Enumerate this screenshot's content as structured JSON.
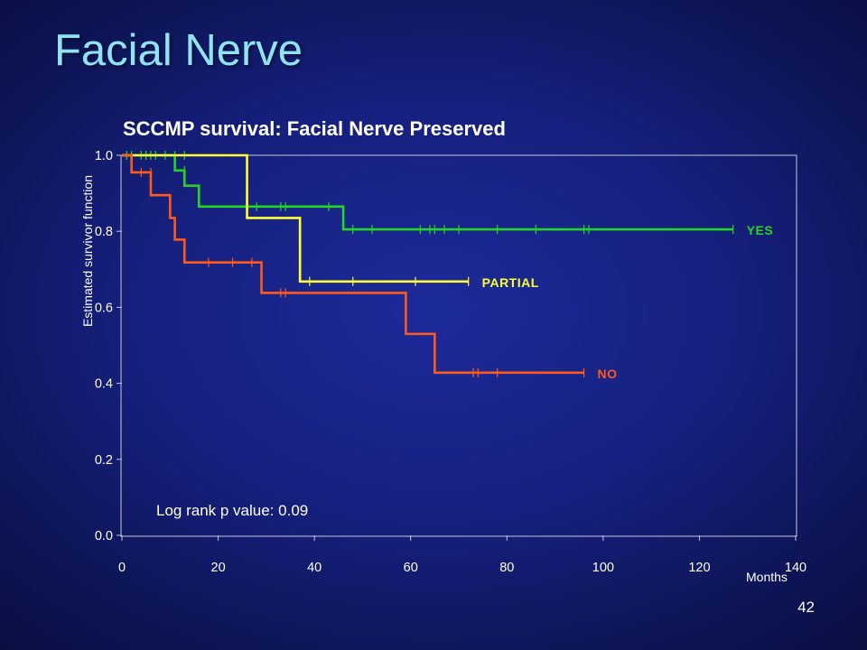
{
  "slide": {
    "title": "Facial Nerve",
    "number": "42"
  },
  "chart_data": {
    "type": "line",
    "subtype": "kaplan-meier step",
    "title": "SCCMP survival: Facial Nerve Preserved",
    "xlabel": "Months",
    "ylabel": "Estimated survivor function",
    "xlim": [
      0,
      140
    ],
    "ylim": [
      0,
      1
    ],
    "xticks": [
      0,
      20,
      40,
      60,
      80,
      100,
      120,
      140
    ],
    "yticks": [
      "0.0",
      "0.2",
      "0.4",
      "0.6",
      "0.8",
      "1.0"
    ],
    "grid": false,
    "annotation": "Log rank p value: 0.09",
    "series": [
      {
        "name": "YES",
        "color": "#22d622",
        "steps": [
          [
            0,
            1.0
          ],
          [
            11,
            0.96
          ],
          [
            13,
            0.92
          ],
          [
            16,
            0.865
          ],
          [
            46,
            0.805
          ],
          [
            127,
            0.805
          ]
        ],
        "censored": [
          [
            1,
            1.0
          ],
          [
            2,
            1.0
          ],
          [
            4,
            1.0
          ],
          [
            5,
            1.0
          ],
          [
            6,
            1.0
          ],
          [
            7,
            1.0
          ],
          [
            9,
            1.0
          ],
          [
            11,
            1.0
          ],
          [
            13,
            1.0
          ],
          [
            13,
            0.96
          ],
          [
            28,
            0.865
          ],
          [
            33,
            0.865
          ],
          [
            34,
            0.865
          ],
          [
            43,
            0.865
          ],
          [
            48,
            0.805
          ],
          [
            52,
            0.805
          ],
          [
            62,
            0.805
          ],
          [
            64,
            0.805
          ],
          [
            65,
            0.805
          ],
          [
            67,
            0.805
          ],
          [
            70,
            0.805
          ],
          [
            78,
            0.805
          ],
          [
            86,
            0.805
          ],
          [
            96,
            0.805
          ],
          [
            97,
            0.805
          ],
          [
            127,
            0.805
          ]
        ]
      },
      {
        "name": "PARTIAL",
        "color": "#ffff33",
        "steps": [
          [
            0,
            1.0
          ],
          [
            26,
            0.835
          ],
          [
            37,
            0.668
          ],
          [
            72,
            0.668
          ]
        ],
        "censored": [
          [
            39,
            0.668
          ],
          [
            48,
            0.668
          ],
          [
            61,
            0.668
          ],
          [
            72,
            0.668
          ]
        ]
      },
      {
        "name": "NO",
        "color": "#ff5a1a",
        "steps": [
          [
            0,
            1.0
          ],
          [
            2,
            0.955
          ],
          [
            6,
            0.895
          ],
          [
            10,
            0.835
          ],
          [
            11,
            0.778
          ],
          [
            13,
            0.718
          ],
          [
            29,
            0.638
          ],
          [
            59,
            0.53
          ],
          [
            65,
            0.428
          ],
          [
            96,
            0.428
          ]
        ],
        "censored": [
          [
            4,
            0.955
          ],
          [
            6,
            0.955
          ],
          [
            18,
            0.718
          ],
          [
            23,
            0.718
          ],
          [
            27,
            0.718
          ],
          [
            33,
            0.638
          ],
          [
            34,
            0.638
          ],
          [
            73,
            0.428
          ],
          [
            74,
            0.428
          ],
          [
            78,
            0.428
          ],
          [
            96,
            0.428
          ]
        ]
      }
    ]
  }
}
